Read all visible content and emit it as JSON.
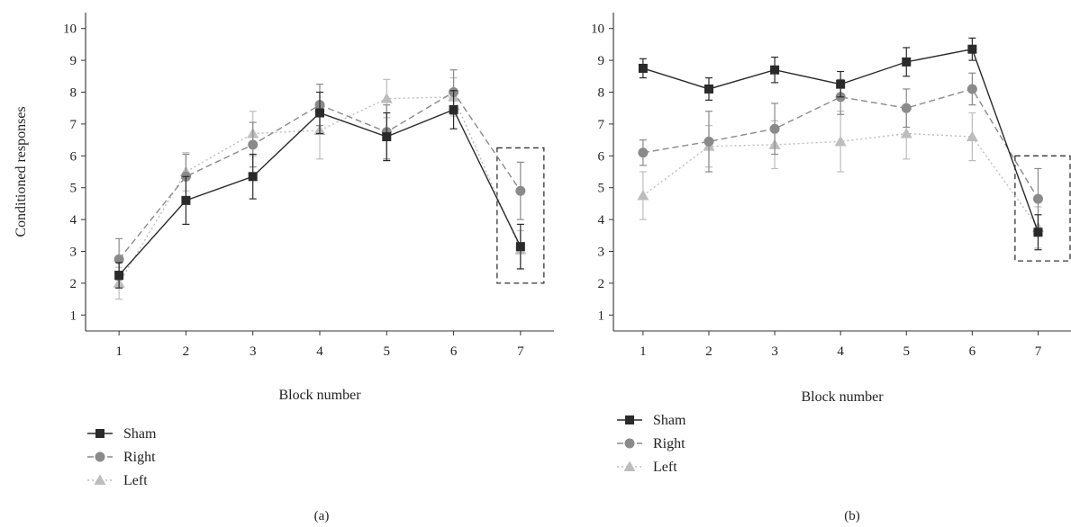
{
  "chart_data": [
    {
      "type": "line",
      "panel_label": "(a)",
      "xlabel": "Block number",
      "ylabel": "Conditioned responses",
      "x": [
        1,
        2,
        3,
        4,
        5,
        6,
        7
      ],
      "xlim": [
        0.5,
        7.5
      ],
      "ylim": [
        0.5,
        10.5
      ],
      "yticks": [
        1,
        2,
        3,
        4,
        5,
        6,
        7,
        8,
        9,
        10
      ],
      "grid": false,
      "legend_position": "bottom-left",
      "highlight_box": {
        "x": [
          6.65,
          7.35
        ],
        "y": [
          2.0,
          6.25
        ]
      },
      "series": [
        {
          "name": "Sham",
          "color": "#2a2a2a",
          "marker": "square",
          "dash": "solid",
          "values": [
            2.25,
            4.6,
            5.35,
            7.35,
            6.6,
            7.45,
            3.15
          ],
          "errors": [
            0.4,
            0.75,
            0.7,
            0.65,
            0.75,
            0.6,
            0.7
          ]
        },
        {
          "name": "Right",
          "color": "#8a8a8a",
          "marker": "circle",
          "dash": "dashed",
          "values": [
            2.75,
            5.35,
            6.35,
            7.6,
            6.75,
            8.0,
            4.9
          ],
          "errors": [
            0.65,
            0.7,
            0.7,
            0.65,
            0.85,
            0.7,
            0.9
          ]
        },
        {
          "name": "Left",
          "color": "#bdbdbd",
          "marker": "triangle",
          "dash": "dotted",
          "values": [
            2.0,
            5.5,
            6.7,
            6.8,
            7.8,
            7.85,
            3.05
          ],
          "errors": [
            0.5,
            0.6,
            0.7,
            0.9,
            0.6,
            0.6,
            0.6
          ]
        }
      ]
    },
    {
      "type": "line",
      "panel_label": "(b)",
      "xlabel": "Block number",
      "ylabel": "",
      "x": [
        1,
        2,
        3,
        4,
        5,
        6,
        7
      ],
      "xlim": [
        0.55,
        7.5
      ],
      "ylim": [
        0.5,
        10.5
      ],
      "yticks": [
        1,
        2,
        3,
        4,
        5,
        6,
        7,
        8,
        9,
        10
      ],
      "grid": false,
      "legend_position": "bottom-left",
      "highlight_box": {
        "x": [
          6.65,
          7.55
        ],
        "y": [
          2.7,
          6.0
        ]
      },
      "series": [
        {
          "name": "Sham",
          "color": "#2a2a2a",
          "marker": "square",
          "dash": "solid",
          "values": [
            8.75,
            8.1,
            8.7,
            8.25,
            8.95,
            9.35,
            3.6
          ],
          "errors": [
            0.3,
            0.35,
            0.4,
            0.4,
            0.45,
            0.35,
            0.55
          ]
        },
        {
          "name": "Right",
          "color": "#8a8a8a",
          "marker": "circle",
          "dash": "dashed",
          "values": [
            6.1,
            6.45,
            6.85,
            7.85,
            7.5,
            8.1,
            4.65
          ],
          "errors": [
            0.4,
            0.95,
            0.8,
            0.55,
            0.6,
            0.5,
            0.95
          ]
        },
        {
          "name": "Left",
          "color": "#bdbdbd",
          "marker": "triangle",
          "dash": "dotted",
          "values": [
            4.75,
            6.3,
            6.35,
            6.45,
            6.7,
            6.6,
            3.75
          ],
          "errors": [
            0.75,
            0.65,
            0.75,
            0.95,
            0.8,
            0.75,
            0.65
          ]
        }
      ]
    }
  ]
}
